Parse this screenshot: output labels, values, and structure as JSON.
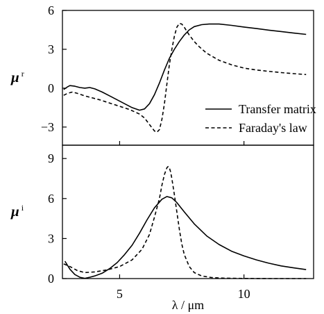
{
  "chart_data": [
    {
      "panel": "top",
      "type": "line",
      "ylabel": "μ",
      "ylabel_sub": "r",
      "xlim": [
        2.7,
        12.8
      ],
      "ylim": [
        -4.4,
        6.0
      ],
      "yticks": [
        -3,
        0,
        3,
        6
      ],
      "ytick_labels": [
        "−3",
        "0",
        "3",
        "6"
      ],
      "legend": "bottom-right",
      "series": [
        {
          "name": "Transfer matrix",
          "style": "solid",
          "x": [
            2.75,
            2.9,
            3.0,
            3.2,
            3.4,
            3.6,
            3.8,
            4.0,
            4.3,
            4.6,
            4.9,
            5.2,
            5.5,
            5.8,
            6.0,
            6.2,
            6.4,
            6.6,
            6.8,
            7.0,
            7.2,
            7.4,
            7.6,
            7.8,
            8.0,
            8.3,
            8.6,
            9.0,
            9.5,
            10.0,
            10.5,
            11.0,
            11.5,
            12.0,
            12.5
          ],
          "y": [
            -0.1,
            0.1,
            0.2,
            0.15,
            0.05,
            0.0,
            0.05,
            -0.05,
            -0.3,
            -0.6,
            -0.9,
            -1.2,
            -1.5,
            -1.7,
            -1.6,
            -1.2,
            -0.5,
            0.4,
            1.4,
            2.3,
            3.0,
            3.6,
            4.1,
            4.5,
            4.75,
            4.9,
            4.95,
            4.95,
            4.85,
            4.72,
            4.6,
            4.48,
            4.37,
            4.25,
            4.15
          ]
        },
        {
          "name": "Faraday's law",
          "style": "dashed",
          "x": [
            2.75,
            2.9,
            3.1,
            3.3,
            3.6,
            3.9,
            4.2,
            4.6,
            5.0,
            5.4,
            5.8,
            6.0,
            6.2,
            6.4,
            6.5,
            6.6,
            6.7,
            6.8,
            6.9,
            7.0,
            7.1,
            7.2,
            7.3,
            7.4,
            7.5,
            7.6,
            7.7,
            7.8,
            8.0,
            8.2,
            8.5,
            9.0,
            9.5,
            10.0,
            10.5,
            11.0,
            11.5,
            12.0,
            12.5
          ],
          "y": [
            -0.55,
            -0.4,
            -0.3,
            -0.4,
            -0.6,
            -0.75,
            -0.9,
            -1.15,
            -1.4,
            -1.65,
            -2.0,
            -2.3,
            -2.8,
            -3.3,
            -3.4,
            -3.2,
            -2.4,
            -1.2,
            0.3,
            1.8,
            3.0,
            4.0,
            4.7,
            5.0,
            4.95,
            4.7,
            4.4,
            4.1,
            3.6,
            3.2,
            2.7,
            2.15,
            1.8,
            1.55,
            1.4,
            1.3,
            1.2,
            1.12,
            1.05
          ]
        }
      ]
    },
    {
      "panel": "bottom",
      "type": "line",
      "ylabel": "μ",
      "ylabel_sub": "i",
      "xlabel": "λ / μm",
      "xlim": [
        2.7,
        12.8
      ],
      "ylim": [
        0,
        10.0
      ],
      "yticks": [
        0,
        3,
        6,
        9
      ],
      "ytick_labels": [
        "0",
        "3",
        "6",
        "9"
      ],
      "xticks": [
        5,
        10
      ],
      "xtick_labels": [
        "5",
        "10"
      ],
      "series": [
        {
          "name": "Transfer matrix",
          "style": "solid",
          "x": [
            2.8,
            3.0,
            3.2,
            3.4,
            3.6,
            3.8,
            4.0,
            4.3,
            4.6,
            4.9,
            5.2,
            5.5,
            5.8,
            6.1,
            6.4,
            6.7,
            6.9,
            7.1,
            7.3,
            7.6,
            8.0,
            8.5,
            9.0,
            9.5,
            10.0,
            10.5,
            11.0,
            11.5,
            12.0,
            12.5
          ],
          "y": [
            1.3,
            0.7,
            0.3,
            0.1,
            0.02,
            0.1,
            0.2,
            0.4,
            0.75,
            1.2,
            1.8,
            2.5,
            3.4,
            4.4,
            5.3,
            5.95,
            6.15,
            6.05,
            5.7,
            5.0,
            4.1,
            3.2,
            2.55,
            2.05,
            1.7,
            1.4,
            1.15,
            0.95,
            0.8,
            0.67
          ]
        },
        {
          "name": "Faraday's law",
          "style": "dashed",
          "x": [
            2.75,
            3.0,
            3.3,
            3.6,
            4.0,
            4.5,
            5.0,
            5.5,
            5.9,
            6.2,
            6.4,
            6.6,
            6.7,
            6.8,
            6.9,
            6.95,
            7.0,
            7.05,
            7.1,
            7.2,
            7.3,
            7.4,
            7.5,
            7.6,
            7.8,
            8.0,
            8.3,
            8.7,
            9.2,
            10.0,
            11.0,
            12.0,
            12.5
          ],
          "y": [
            1.1,
            0.9,
            0.6,
            0.45,
            0.5,
            0.65,
            0.9,
            1.4,
            2.2,
            3.3,
            4.6,
            6.0,
            7.0,
            7.8,
            8.3,
            8.4,
            8.3,
            8.0,
            7.5,
            6.3,
            5.0,
            3.7,
            2.6,
            1.8,
            0.9,
            0.45,
            0.2,
            0.08,
            0.03,
            0.01,
            0.0,
            0.0,
            0.0
          ]
        }
      ]
    }
  ]
}
